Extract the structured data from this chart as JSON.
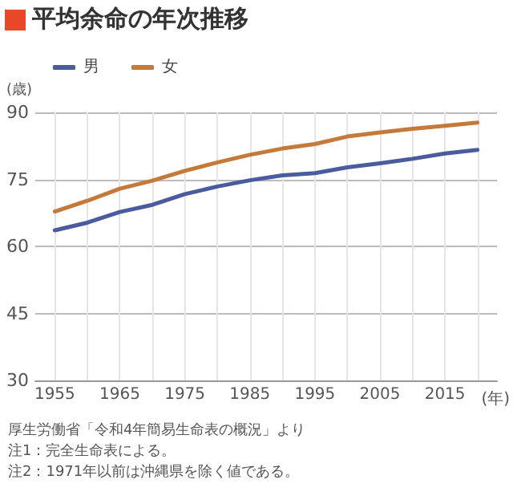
{
  "chart_data": {
    "type": "line",
    "title": "平均余命の年次推移",
    "ylabel": "(歳)",
    "xlabel": "(年)",
    "x": [
      1955,
      1960,
      1965,
      1970,
      1975,
      1980,
      1985,
      1990,
      1995,
      2000,
      2005,
      2010,
      2015,
      2020
    ],
    "series": [
      {
        "name": "男",
        "color": "#4a5b9e",
        "values": [
          63.6,
          65.3,
          67.7,
          69.3,
          71.7,
          73.4,
          74.8,
          75.9,
          76.4,
          77.7,
          78.6,
          79.6,
          80.8,
          81.6
        ]
      },
      {
        "name": "女",
        "color": "#c57a3a",
        "values": [
          67.8,
          70.2,
          72.9,
          74.7,
          76.9,
          78.8,
          80.5,
          81.9,
          82.9,
          84.6,
          85.5,
          86.3,
          87.0,
          87.7
        ]
      }
    ],
    "xlim": [
      1952,
      2023
    ],
    "xticks": [
      1955,
      {
        "value": 1960,
        "label": null
      },
      1965,
      {
        "value": 1970,
        "label": null
      },
      1975,
      {
        "value": 1980,
        "label": null
      },
      1985,
      {
        "value": 1990,
        "label": null
      },
      1995,
      {
        "value": 2000,
        "label": null
      },
      2005,
      {
        "value": 2010,
        "label": null
      },
      2015,
      {
        "value": 2020,
        "label": null
      }
    ],
    "ylim": [
      30,
      90
    ],
    "yticks": [
      30,
      45,
      60,
      75,
      90
    ],
    "grid": true,
    "legend": "top left",
    "marker": "none",
    "line_style": "solid",
    "annotations": [
      "厚生労働省「令和4年簡易生命表の概況」より",
      "注1：完全生命表による。",
      "注2：1971年以前は沖縄県を除く値である。"
    ]
  }
}
